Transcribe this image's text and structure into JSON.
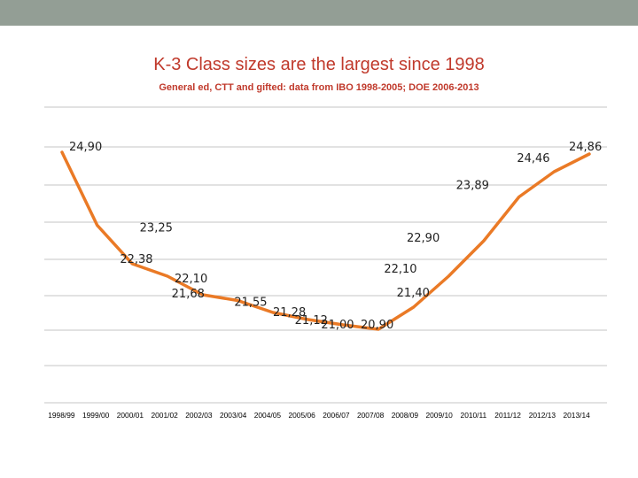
{
  "slide": {
    "title": "K-3 Class sizes are the largest since 1998",
    "subtitle": "General ed, CTT and gifted: data from IBO 1998-2005; DOE 2006-2013"
  },
  "colors": {
    "series": "#ea7a26",
    "title": "#c0392b",
    "top_bar": "#939e95"
  },
  "chart_data": {
    "type": "line",
    "title": "K-3 Class sizes are the largest since 1998",
    "subtitle": "General ed, CTT and gifted: data from IBO 1998-2005; DOE 2006-2013",
    "categories": [
      "1998/99",
      "1999/00",
      "2000/01",
      "2001/02",
      "2002/03",
      "2003/04",
      "2004/05",
      "2005/06",
      "2006/07",
      "2007/08",
      "2008/09",
      "2009/10",
      "2010/11",
      "2011/12",
      "2012/13",
      "2013/14"
    ],
    "series": [
      {
        "values": [
          24.9,
          23.25,
          22.38,
          22.1,
          21.68,
          21.55,
          21.28,
          21.12,
          21.0,
          20.9,
          21.4,
          22.1,
          22.9,
          23.89,
          24.46,
          24.86
        ],
        "labels": [
          "24,90",
          "23,25",
          "22,38",
          "22,10",
          "21,68",
          "21,55",
          "21,28",
          "21,12",
          "21,00",
          "20,90",
          "21,40",
          "22,10",
          "22,90",
          "23,89",
          "24,46",
          "24,86"
        ]
      }
    ],
    "grid": true,
    "legend": "none"
  }
}
